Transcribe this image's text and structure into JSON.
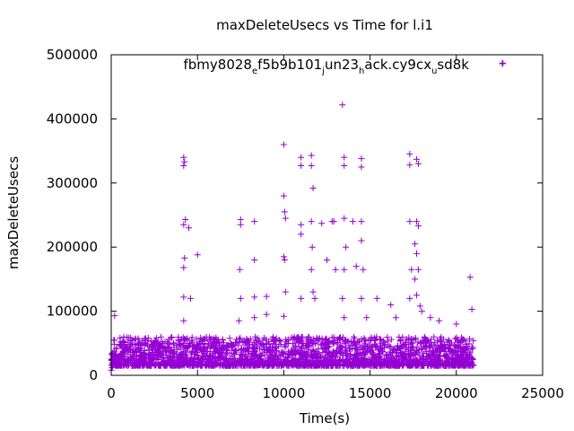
{
  "chart_data": {
    "type": "scatter",
    "title": "maxDeleteUsecs vs Time for l.i1",
    "xlabel": "Time(s)",
    "ylabel": "maxDeleteUsecs",
    "xlim": [
      0,
      25000
    ],
    "ylim": [
      0,
      500000
    ],
    "xticks": [
      0,
      5000,
      10000,
      15000,
      20000,
      25000
    ],
    "yticks": [
      0,
      100000,
      200000,
      300000,
      400000,
      500000
    ],
    "grid": false,
    "legend_position": "top-right",
    "marker": "plus",
    "series": [
      {
        "name": "fbmy8028_ef5b9b101_jun23_hack.cy9cx_usd8k",
        "color": "#9400d3",
        "baseline_band": {
          "x_range": [
            0,
            21000
          ],
          "y_range": [
            15000,
            60000
          ]
        },
        "points": [
          [
            0,
            8000
          ],
          [
            50,
            12000
          ],
          [
            80,
            20000
          ],
          [
            100,
            30000
          ],
          [
            150,
            55000
          ],
          [
            200,
            93000
          ],
          [
            4200,
            85000
          ],
          [
            4200,
            122000
          ],
          [
            4200,
            168000
          ],
          [
            4250,
            183000
          ],
          [
            4200,
            235000
          ],
          [
            4300,
            243000
          ],
          [
            4200,
            327000
          ],
          [
            4250,
            333000
          ],
          [
            4200,
            340000
          ],
          [
            4500,
            230000
          ],
          [
            4600,
            120000
          ],
          [
            5000,
            188000
          ],
          [
            7400,
            85000
          ],
          [
            7500,
            120000
          ],
          [
            7450,
            165000
          ],
          [
            7500,
            235000
          ],
          [
            7500,
            243000
          ],
          [
            8300,
            90000
          ],
          [
            8300,
            122000
          ],
          [
            8300,
            180000
          ],
          [
            8300,
            240000
          ],
          [
            9000,
            95000
          ],
          [
            9000,
            123000
          ],
          [
            10000,
            360000
          ],
          [
            10000,
            280000
          ],
          [
            10050,
            255000
          ],
          [
            10100,
            245000
          ],
          [
            10000,
            185000
          ],
          [
            10050,
            180000
          ],
          [
            10100,
            130000
          ],
          [
            10000,
            92000
          ],
          [
            11000,
            340000
          ],
          [
            11000,
            327000
          ],
          [
            11000,
            235000
          ],
          [
            11000,
            220000
          ],
          [
            11000,
            120000
          ],
          [
            11600,
            343000
          ],
          [
            11600,
            327000
          ],
          [
            11700,
            292000
          ],
          [
            11600,
            240000
          ],
          [
            11650,
            200000
          ],
          [
            11600,
            165000
          ],
          [
            11700,
            130000
          ],
          [
            11800,
            120000
          ],
          [
            12200,
            237000
          ],
          [
            12500,
            180000
          ],
          [
            12800,
            240000
          ],
          [
            12900,
            240000
          ],
          [
            13000,
            165000
          ],
          [
            13400,
            422000
          ],
          [
            13500,
            340000
          ],
          [
            13500,
            327000
          ],
          [
            13500,
            245000
          ],
          [
            13600,
            200000
          ],
          [
            13500,
            165000
          ],
          [
            13400,
            120000
          ],
          [
            13500,
            90000
          ],
          [
            14000,
            240000
          ],
          [
            14200,
            170000
          ],
          [
            14500,
            338000
          ],
          [
            14500,
            325000
          ],
          [
            14500,
            240000
          ],
          [
            14500,
            210000
          ],
          [
            14600,
            165000
          ],
          [
            14500,
            120000
          ],
          [
            14800,
            90000
          ],
          [
            15400,
            120000
          ],
          [
            16200,
            110000
          ],
          [
            16500,
            90000
          ],
          [
            17300,
            345000
          ],
          [
            17300,
            328000
          ],
          [
            17300,
            240000
          ],
          [
            17400,
            165000
          ],
          [
            17300,
            120000
          ],
          [
            17700,
            337000
          ],
          [
            17800,
            330000
          ],
          [
            17700,
            240000
          ],
          [
            17800,
            233000
          ],
          [
            17600,
            205000
          ],
          [
            17700,
            190000
          ],
          [
            17800,
            165000
          ],
          [
            17600,
            150000
          ],
          [
            17700,
            125000
          ],
          [
            17900,
            108000
          ],
          [
            18000,
            100000
          ],
          [
            18500,
            90000
          ],
          [
            19000,
            85000
          ],
          [
            20000,
            80000
          ],
          [
            20800,
            153000
          ],
          [
            20900,
            103000
          ],
          [
            22700,
            487000
          ]
        ]
      }
    ]
  }
}
